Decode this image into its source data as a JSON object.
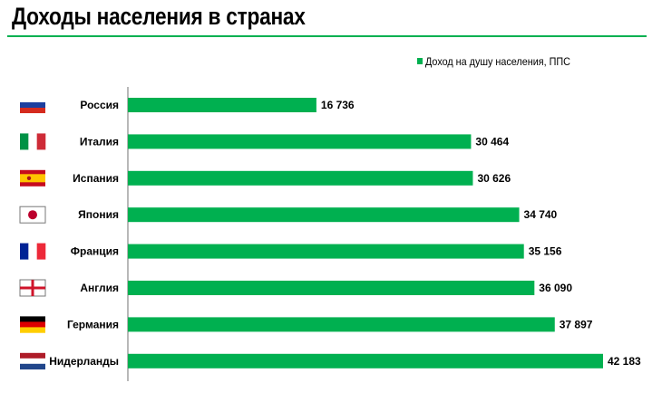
{
  "title": "Доходы населения в странах",
  "chart_data": {
    "type": "bar",
    "orientation": "horizontal",
    "title": "Доходы населения в странах",
    "xlabel": "",
    "ylabel": "",
    "xlim": [
      0,
      42183
    ],
    "grid": false,
    "legend": {
      "placement": "top-right",
      "entries": [
        "Доход на душу населения, ППС"
      ]
    },
    "series": [
      {
        "name": "Доход на душу населения, ППС",
        "color": "#00b050",
        "values": [
          16736,
          30464,
          30626,
          34740,
          35156,
          36090,
          37897,
          42183
        ]
      }
    ],
    "categories": [
      "Россия",
      "Италия",
      "Испания",
      "Япония",
      "Франция",
      "Англия",
      "Германия",
      "Нидерланды"
    ],
    "value_labels": [
      "16 736",
      "30 464",
      "30 626",
      "34 740",
      "35 156",
      "36 090",
      "37 897",
      "42 183"
    ],
    "flags": [
      "russia-flag",
      "italy-flag",
      "spain-flag",
      "japan-flag",
      "france-flag",
      "england-flag",
      "germany-flag",
      "netherlands-flag"
    ]
  }
}
